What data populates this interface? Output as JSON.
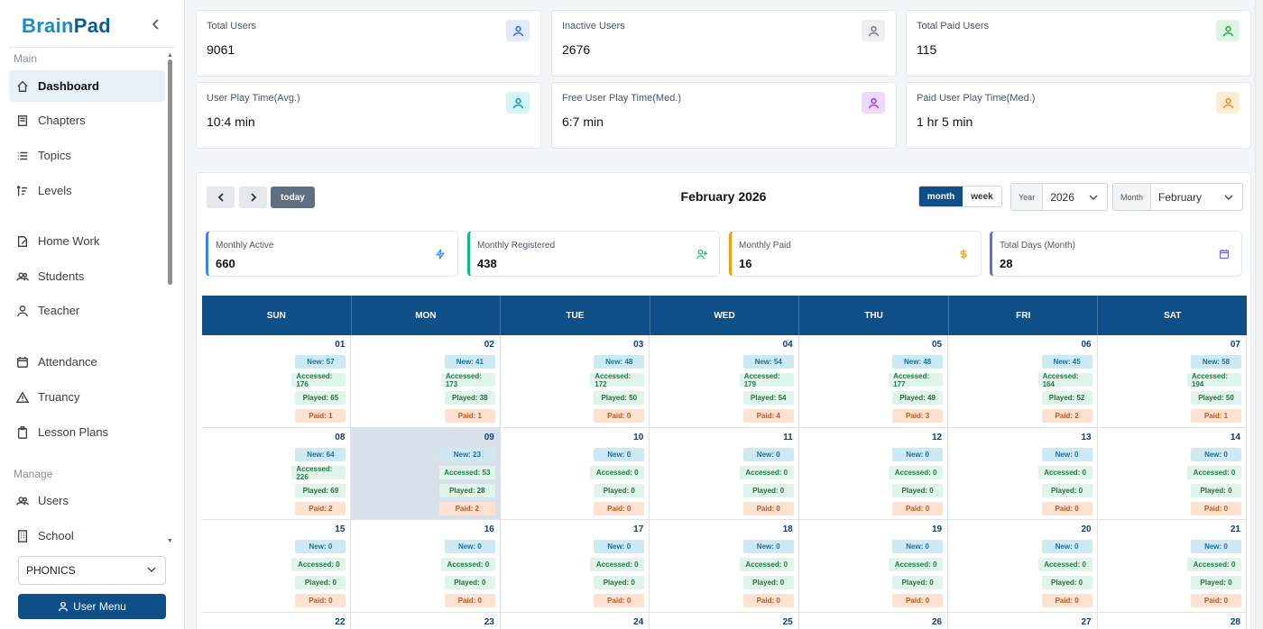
{
  "brand": {
    "part1": "Brain",
    "part2": "Pad"
  },
  "sidebar": {
    "sections": {
      "main": "Main",
      "manage": "Manage"
    },
    "items": [
      {
        "label": "Dashboard",
        "icon": "home-icon",
        "active": true
      },
      {
        "label": "Chapters",
        "icon": "book-icon"
      },
      {
        "label": "Topics",
        "icon": "list-icon"
      },
      {
        "label": "Levels",
        "icon": "levels-icon"
      },
      {
        "label": "Home Work",
        "icon": "homework-icon"
      },
      {
        "label": "Students",
        "icon": "students-icon"
      },
      {
        "label": "Teacher",
        "icon": "teacher-icon"
      },
      {
        "label": "Attendance",
        "icon": "calendar-icon"
      },
      {
        "label": "Truancy",
        "icon": "warning-icon"
      },
      {
        "label": "Lesson Plans",
        "icon": "clipboard-icon"
      },
      {
        "label": "Users",
        "icon": "users-icon"
      },
      {
        "label": "School",
        "icon": "building-icon"
      }
    ],
    "subject": "PHONICS",
    "user_menu": "User Menu"
  },
  "stats": [
    {
      "label": "Total Users",
      "value": "9061",
      "color": "#2563eb",
      "bg": "#e3ebfb"
    },
    {
      "label": "Inactive Users",
      "value": "2676",
      "color": "#6b7280",
      "bg": "#eeeeef"
    },
    {
      "label": "Total Paid Users",
      "value": "115",
      "color": "#16a34a",
      "bg": "#dcf5e4"
    },
    {
      "label": "User Play Time(Avg.)",
      "value": "10:4 min",
      "color": "#0891b2",
      "bg": "#d4f4f6"
    },
    {
      "label": "Free User Play Time(Med.)",
      "value": "6:7 min",
      "color": "#9333ea",
      "bg": "#ecd9fb"
    },
    {
      "label": "Paid User Play Time(Med.)",
      "value": "1 hr 5 min",
      "color": "#ea8a0c",
      "bg": "#fdecd4"
    }
  ],
  "calendar": {
    "title": "February 2026",
    "today_label": "today",
    "view_month": "month",
    "view_week": "week",
    "year_label": "Year",
    "year_value": "2026",
    "month_label": "Month",
    "month_value": "February",
    "weekdays": [
      "SUN",
      "MON",
      "TUE",
      "WED",
      "THU",
      "FRI",
      "SAT"
    ],
    "summary": [
      {
        "label": "Monthly Active",
        "value": "660",
        "color": "#3b82f6",
        "icon": "bolt-icon"
      },
      {
        "label": "Monthly Registered",
        "value": "438",
        "color": "#10b981",
        "icon": "user-plus-icon"
      },
      {
        "label": "Monthly Paid",
        "value": "16",
        "color": "#f59e0b",
        "icon": "dollar-icon"
      },
      {
        "label": "Total Days (Month)",
        "value": "28",
        "color": "#6366f1",
        "icon": "calendar-icon"
      }
    ],
    "days": [
      {
        "d": "01",
        "new": "New: 57",
        "acc": "Accessed: 176",
        "play": "Played: 65",
        "paid": "Paid: 1"
      },
      {
        "d": "02",
        "new": "New: 41",
        "acc": "Accessed: 173",
        "play": "Played: 38",
        "paid": "Paid: 1"
      },
      {
        "d": "03",
        "new": "New: 48",
        "acc": "Accessed: 172",
        "play": "Played: 50",
        "paid": "Paid: 0"
      },
      {
        "d": "04",
        "new": "New: 54",
        "acc": "Accessed: 179",
        "play": "Played: 54",
        "paid": "Paid: 4"
      },
      {
        "d": "05",
        "new": "New: 48",
        "acc": "Accessed: 177",
        "play": "Played: 49",
        "paid": "Paid: 3"
      },
      {
        "d": "06",
        "new": "New: 45",
        "acc": "Accessed: 164",
        "play": "Played: 52",
        "paid": "Paid: 2"
      },
      {
        "d": "07",
        "new": "New: 58",
        "acc": "Accessed: 194",
        "play": "Played: 50",
        "paid": "Paid: 1"
      },
      {
        "d": "08",
        "new": "New: 64",
        "acc": "Accessed: 226",
        "play": "Played: 69",
        "paid": "Paid: 2"
      },
      {
        "d": "09",
        "new": "New: 23",
        "acc": "Accessed: 53",
        "play": "Played: 28",
        "paid": "Paid: 2",
        "today": true
      },
      {
        "d": "10",
        "new": "New: 0",
        "acc": "Accessed: 0",
        "play": "Played: 0",
        "paid": "Paid: 0"
      },
      {
        "d": "11",
        "new": "New: 0",
        "acc": "Accessed: 0",
        "play": "Played: 0",
        "paid": "Paid: 0"
      },
      {
        "d": "12",
        "new": "New: 0",
        "acc": "Accessed: 0",
        "play": "Played: 0",
        "paid": "Paid: 0"
      },
      {
        "d": "13",
        "new": "New: 0",
        "acc": "Accessed: 0",
        "play": "Played: 0",
        "paid": "Paid: 0"
      },
      {
        "d": "14",
        "new": "New: 0",
        "acc": "Accessed: 0",
        "play": "Played: 0",
        "paid": "Paid: 0"
      },
      {
        "d": "15",
        "new": "New: 0",
        "acc": "Accessed: 0",
        "play": "Played: 0",
        "paid": "Paid: 0"
      },
      {
        "d": "16",
        "new": "New: 0",
        "acc": "Accessed: 0",
        "play": "Played: 0",
        "paid": "Paid: 0"
      },
      {
        "d": "17",
        "new": "New: 0",
        "acc": "Accessed: 0",
        "play": "Played: 0",
        "paid": "Paid: 0"
      },
      {
        "d": "18",
        "new": "New: 0",
        "acc": "Accessed: 0",
        "play": "Played: 0",
        "paid": "Paid: 0"
      },
      {
        "d": "19",
        "new": "New: 0",
        "acc": "Accessed: 0",
        "play": "Played: 0",
        "paid": "Paid: 0"
      },
      {
        "d": "20",
        "new": "New: 0",
        "acc": "Accessed: 0",
        "play": "Played: 0",
        "paid": "Paid: 0"
      },
      {
        "d": "21",
        "new": "New: 0",
        "acc": "Accessed: 0",
        "play": "Played: 0",
        "paid": "Paid: 0"
      },
      {
        "d": "22"
      },
      {
        "d": "23"
      },
      {
        "d": "24"
      },
      {
        "d": "25"
      },
      {
        "d": "26"
      },
      {
        "d": "27"
      },
      {
        "d": "28"
      }
    ]
  }
}
